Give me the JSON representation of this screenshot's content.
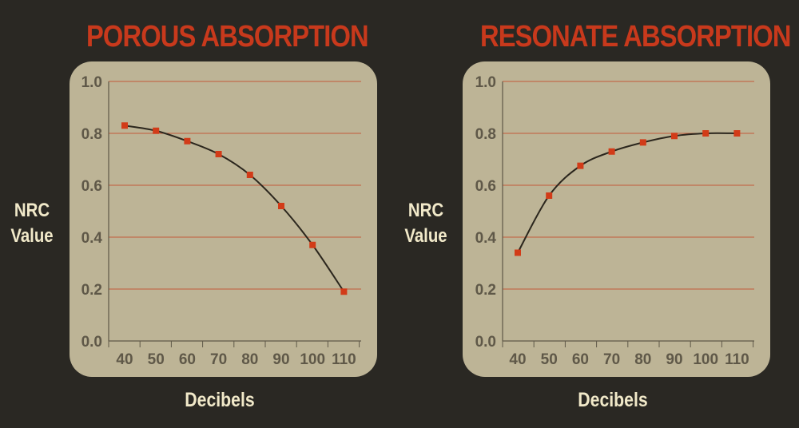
{
  "colors": {
    "background": "#2a2823",
    "panel": "#bdb496",
    "title": "#c8391c",
    "label": "#f1e9c9",
    "tick_label": "#5f5848",
    "gridline": "#c25a3a",
    "axis": "#5f5848",
    "line": "#2b261d",
    "marker": "#d23b18"
  },
  "chart_data": [
    {
      "type": "line",
      "title": "POROUS ABSORPTION",
      "xlabel": "Decibels",
      "ylabel": "NRC Value",
      "ylabel_lines": [
        "NRC",
        "Value"
      ],
      "categories": [
        "40",
        "50",
        "60",
        "70",
        "80",
        "90",
        "100",
        "110"
      ],
      "values": [
        0.83,
        0.81,
        0.77,
        0.72,
        0.64,
        0.52,
        0.37,
        0.19
      ],
      "ylim": [
        0,
        1.0
      ],
      "yticks": [
        "0.0",
        "0.2",
        "0.4",
        "0.6",
        "0.8",
        "1.0"
      ],
      "grid": true,
      "legend": "none"
    },
    {
      "type": "line",
      "title": "RESONATE ABSORPTION",
      "xlabel": "Decibels",
      "ylabel": "NRC Value",
      "ylabel_lines": [
        "NRC",
        "Value"
      ],
      "categories": [
        "40",
        "50",
        "60",
        "70",
        "80",
        "90",
        "100",
        "110"
      ],
      "values": [
        0.34,
        0.56,
        0.675,
        0.73,
        0.765,
        0.79,
        0.8,
        0.8
      ],
      "ylim": [
        0,
        1.0
      ],
      "yticks": [
        "0.0",
        "0.2",
        "0.4",
        "0.6",
        "0.8",
        "1.0"
      ],
      "grid": true,
      "legend": "none"
    }
  ]
}
